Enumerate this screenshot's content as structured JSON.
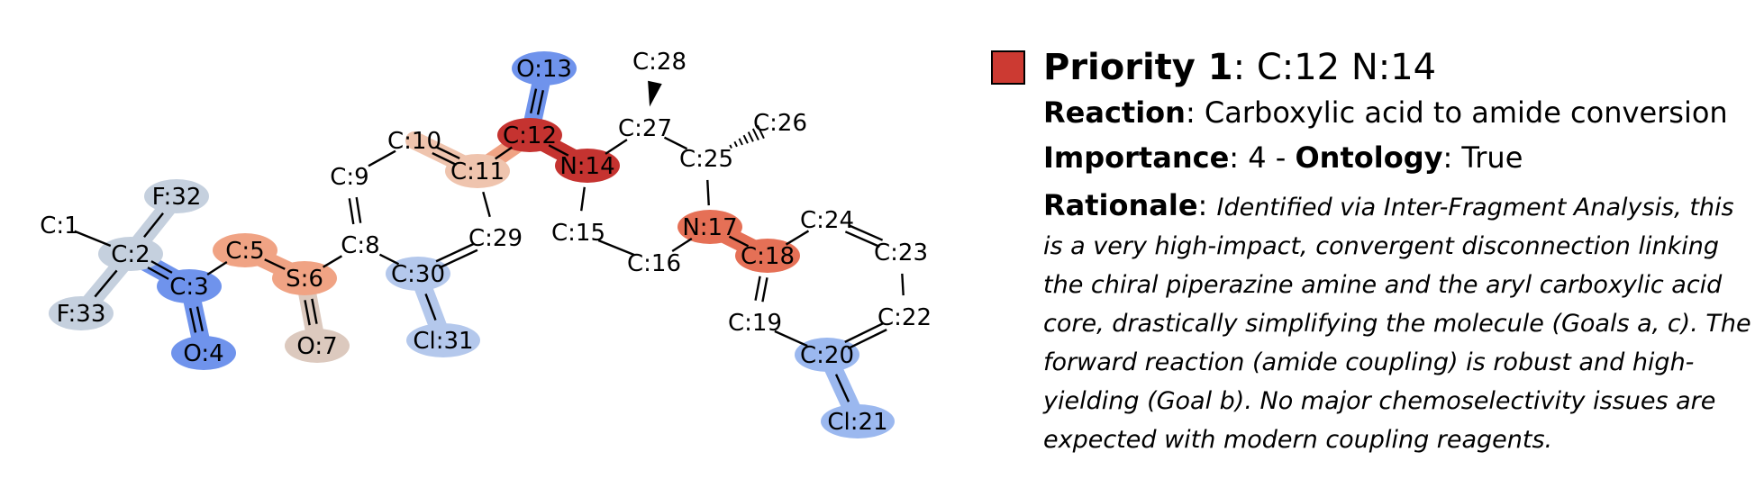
{
  "colors": {
    "priority_swatch": "#cc3a32",
    "red_dark": "#c53330",
    "red_mid": "#e57056",
    "salmon": "#f0a384",
    "pink_light": "#efc4ae",
    "tan": "#dcc9be",
    "blue_strong": "#6f93ec",
    "blue_mid": "#9bb8ef",
    "blue_light": "#b4c8ec",
    "slate": "#c5d0de"
  },
  "atoms": [
    {
      "id": "C:1",
      "label": "C:1",
      "hl": null
    },
    {
      "id": "C:2",
      "label": "C:2",
      "hl": "slate"
    },
    {
      "id": "C:3",
      "label": "C:3",
      "hl": "blue_strong"
    },
    {
      "id": "O:4",
      "label": "O:4",
      "hl": "blue_strong"
    },
    {
      "id": "C:5",
      "label": "C:5",
      "hl": "salmon"
    },
    {
      "id": "S:6",
      "label": "S:6",
      "hl": "salmon"
    },
    {
      "id": "O:7",
      "label": "O:7",
      "hl": "tan"
    },
    {
      "id": "C:8",
      "label": "C:8",
      "hl": null
    },
    {
      "id": "C:9",
      "label": "C:9",
      "hl": null
    },
    {
      "id": "C:10",
      "label": "C:10",
      "hl": null
    },
    {
      "id": "C:11",
      "label": "C:11",
      "hl": "pink_light"
    },
    {
      "id": "C:12",
      "label": "C:12",
      "hl": "red_dark"
    },
    {
      "id": "O:13",
      "label": "O:13",
      "hl": "blue_strong"
    },
    {
      "id": "N:14",
      "label": "N:14",
      "hl": "red_dark"
    },
    {
      "id": "C:15",
      "label": "C:15",
      "hl": null
    },
    {
      "id": "C:16",
      "label": "C:16",
      "hl": null
    },
    {
      "id": "N:17",
      "label": "N:17",
      "hl": "red_mid"
    },
    {
      "id": "C:18",
      "label": "C:18",
      "hl": "red_mid"
    },
    {
      "id": "C:19",
      "label": "C:19",
      "hl": null
    },
    {
      "id": "C:20",
      "label": "C:20",
      "hl": "blue_mid"
    },
    {
      "id": "Cl:21",
      "label": "Cl:21",
      "hl": "blue_mid"
    },
    {
      "id": "C:22",
      "label": "C:22",
      "hl": null
    },
    {
      "id": "C:23",
      "label": "C:23",
      "hl": null
    },
    {
      "id": "C:24",
      "label": "C:24",
      "hl": null
    },
    {
      "id": "C:25",
      "label": "C:25",
      "hl": null
    },
    {
      "id": "C:26",
      "label": "C:26",
      "hl": null
    },
    {
      "id": "C:27",
      "label": "C:27",
      "hl": null
    },
    {
      "id": "C:28",
      "label": "C:28",
      "hl": null
    },
    {
      "id": "C:29",
      "label": "C:29",
      "hl": null
    },
    {
      "id": "C:30",
      "label": "C:30",
      "hl": "blue_light"
    },
    {
      "id": "Cl:31",
      "label": "Cl:31",
      "hl": "blue_light"
    },
    {
      "id": "F:32",
      "label": "F:32",
      "hl": "slate"
    },
    {
      "id": "F:33",
      "label": "F:33",
      "hl": "slate"
    }
  ],
  "bonds": [
    {
      "a": "C:1",
      "b": "C:2",
      "order": 1,
      "hl": null
    },
    {
      "a": "C:2",
      "b": "F:32",
      "order": 1,
      "hl": "slate"
    },
    {
      "a": "C:2",
      "b": "F:33",
      "order": 1,
      "hl": "slate"
    },
    {
      "a": "C:2",
      "b": "C:3",
      "order": 2,
      "hl": "blue_strong"
    },
    {
      "a": "C:3",
      "b": "O:4",
      "order": 2,
      "hl": "blue_strong"
    },
    {
      "a": "C:3",
      "b": "C:5",
      "order": 1,
      "hl": null
    },
    {
      "a": "C:5",
      "b": "S:6",
      "order": 1,
      "hl": "salmon"
    },
    {
      "a": "S:6",
      "b": "O:7",
      "order": 2,
      "hl": "tan"
    },
    {
      "a": "S:6",
      "b": "C:8",
      "order": 1,
      "hl": null
    },
    {
      "a": "C:8",
      "b": "C:9",
      "order": 2,
      "hl": null
    },
    {
      "a": "C:9",
      "b": "C:10",
      "order": 1,
      "hl": null
    },
    {
      "a": "C:10",
      "b": "C:11",
      "order": 2,
      "hl": "pink_light"
    },
    {
      "a": "C:11",
      "b": "C:29",
      "order": 1,
      "hl": null
    },
    {
      "a": "C:29",
      "b": "C:30",
      "order": 2,
      "hl": null
    },
    {
      "a": "C:30",
      "b": "C:8",
      "order": 1,
      "hl": null
    },
    {
      "a": "C:30",
      "b": "Cl:31",
      "order": 1,
      "hl": "blue_light"
    },
    {
      "a": "C:11",
      "b": "C:12",
      "order": 1,
      "hl": "salmon"
    },
    {
      "a": "C:12",
      "b": "O:13",
      "order": 2,
      "hl": "blue_strong"
    },
    {
      "a": "C:12",
      "b": "N:14",
      "order": 1,
      "hl": "red_dark"
    },
    {
      "a": "N:14",
      "b": "C:27",
      "order": 1,
      "hl": null
    },
    {
      "a": "N:14",
      "b": "C:15",
      "order": 1,
      "hl": null
    },
    {
      "a": "C:15",
      "b": "C:16",
      "order": 1,
      "hl": null
    },
    {
      "a": "C:16",
      "b": "N:17",
      "order": 1,
      "hl": null
    },
    {
      "a": "N:17",
      "b": "C:25",
      "order": 1,
      "hl": null
    },
    {
      "a": "C:25",
      "b": "C:27",
      "order": 1,
      "hl": null
    },
    {
      "a": "C:27",
      "b": "C:28",
      "order": 1,
      "hl": null,
      "stereo": "wedge"
    },
    {
      "a": "C:25",
      "b": "C:26",
      "order": 1,
      "hl": null,
      "stereo": "hash"
    },
    {
      "a": "N:17",
      "b": "C:18",
      "order": 1,
      "hl": "red_mid"
    },
    {
      "a": "C:18",
      "b": "C:24",
      "order": 1,
      "hl": null
    },
    {
      "a": "C:24",
      "b": "C:23",
      "order": 2,
      "hl": null
    },
    {
      "a": "C:23",
      "b": "C:22",
      "order": 1,
      "hl": null
    },
    {
      "a": "C:22",
      "b": "C:20",
      "order": 2,
      "hl": null
    },
    {
      "a": "C:20",
      "b": "C:19",
      "order": 1,
      "hl": null
    },
    {
      "a": "C:19",
      "b": "C:18",
      "order": 2,
      "hl": null
    },
    {
      "a": "C:20",
      "b": "Cl:21",
      "order": 1,
      "hl": "blue_mid"
    }
  ],
  "panel": {
    "priority_label": "Priority 1",
    "priority_atoms": ": C:12 N:14",
    "reaction_label": "Reaction",
    "reaction_value": ": Carboxylic acid to amide conversion",
    "importance_label": "Importance",
    "importance_value": ": 4 - ",
    "ontology_label": "Ontology",
    "ontology_value": ": True",
    "rationale_label": "Rationale",
    "rationale_sep": ": ",
    "rationale_text": "Identified via Inter-Fragment Analysis, this is a very high-impact, convergent disconnection linking the chiral piperazine amine and the aryl carboxylic acid core, drastically simplifying the molecule (Goals a, c). The forward reaction (amide coupling) is robust and high-yielding (Goal b). No major chemoselectivity issues are expected with modern coupling reagents."
  }
}
